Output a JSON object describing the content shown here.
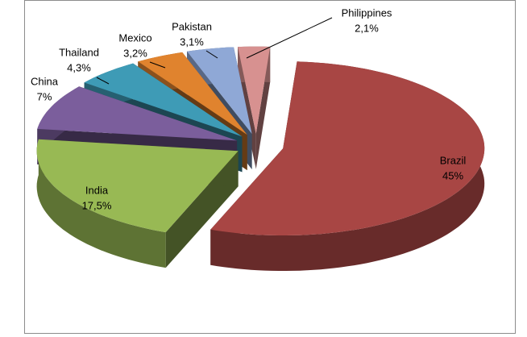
{
  "chart_data": {
    "type": "pie3d",
    "categories": [
      "Brazil",
      "India",
      "China",
      "Thailand",
      "Mexico",
      "Pakistan",
      "Philippines"
    ],
    "values": [
      45,
      17.5,
      7,
      4.3,
      3.2,
      3.1,
      2.1
    ],
    "value_labels": [
      "45%",
      "17,5%",
      "7%",
      "4,3%",
      "3,2%",
      "3,1%",
      "2,1%"
    ],
    "colors": [
      "#a84644",
      "#98b954",
      "#7b5e9c",
      "#3e9bb6",
      "#e0832e",
      "#8fa8d6",
      "#d79190"
    ]
  }
}
